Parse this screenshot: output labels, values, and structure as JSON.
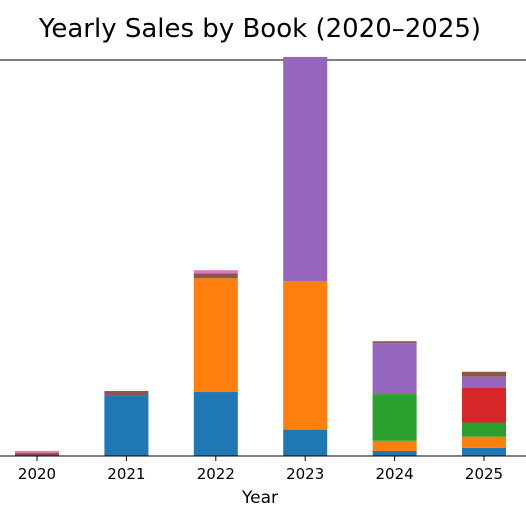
{
  "chart_data": {
    "type": "bar",
    "stacked": true,
    "title": "Yearly Sales by Book (2020–2025)",
    "xlabel": "Year",
    "ylabel": "",
    "categories": [
      "2020",
      "2021",
      "2022",
      "2023",
      "2024",
      "2025"
    ],
    "ylim": [
      0,
      390
    ],
    "grid": false,
    "legend": "none",
    "series": [
      {
        "color": "#1f77b4",
        "values": [
          0,
          60,
          63,
          26,
          5,
          8
        ]
      },
      {
        "color": "#ff7f0e",
        "values": [
          0,
          0,
          112,
          146,
          10,
          11
        ]
      },
      {
        "color": "#2ca02c",
        "values": [
          0,
          0,
          0,
          0,
          46,
          14
        ]
      },
      {
        "color": "#d62728",
        "values": [
          0,
          0,
          0,
          0,
          0,
          34
        ]
      },
      {
        "color": "#9467bd",
        "values": [
          0,
          0,
          0,
          221,
          50,
          11
        ]
      },
      {
        "color": "#8c564b",
        "values": [
          3,
          4,
          5,
          0,
          2,
          5
        ]
      },
      {
        "color": "#e377c2",
        "values": [
          2,
          0,
          3,
          0,
          0,
          0
        ]
      }
    ]
  }
}
